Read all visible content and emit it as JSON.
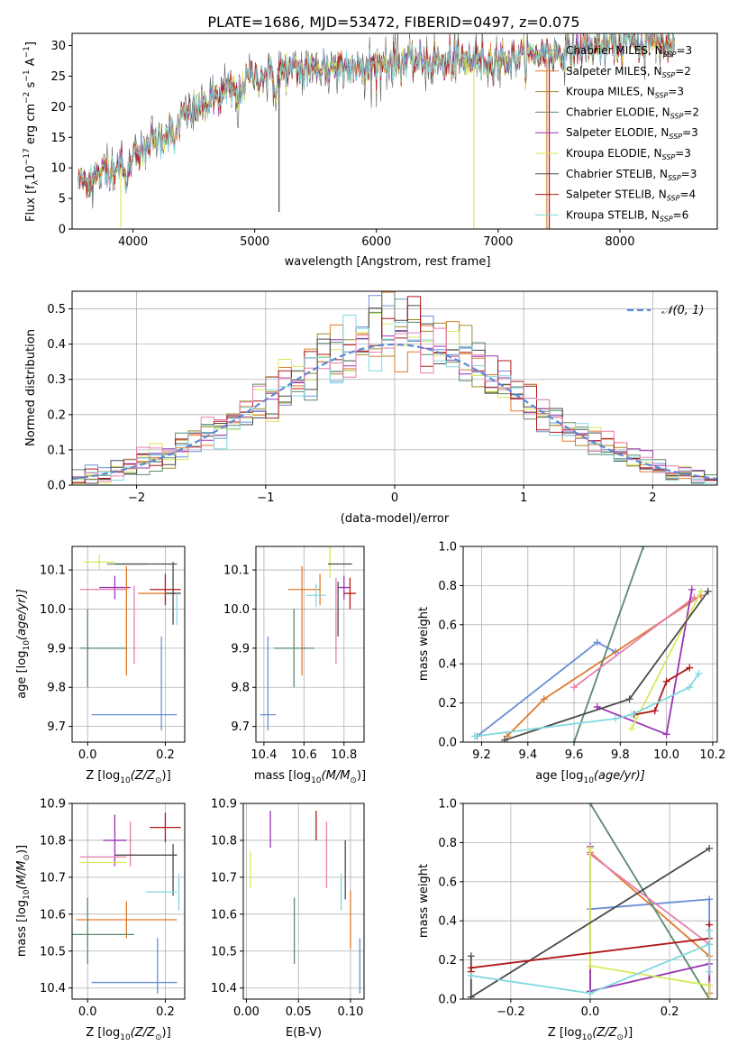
{
  "title": "PLATE=1686, MJD=53472, FIBERID=0497, z=0.075",
  "colors": {
    "Chabrier MILES": "#6a8fd6",
    "Salpeter MILES": "#e07b2e",
    "Kroupa MILES": "#a08a2a",
    "Chabrier ELODIE": "#5b8a6a",
    "Salpeter ELODIE": "#9b33b4",
    "Kroupa ELODIE": "#d8ea5a",
    "Chabrier STELIB": "#4a4a4a",
    "Salpeter STELIB": "#b01818",
    "Kroupa STELIB": "#80d8e0",
    "Pink": "#e57fae",
    "Normal": "#5b8ad8"
  },
  "chart_data": [
    {
      "type": "line",
      "name": "spectrum",
      "xlabel": "wavelength [Angstrom, rest frame]",
      "ylabel": "Flux [f",
      "ylabel_parts": [
        "Flux [f",
        "λ",
        "10",
        "−17",
        " erg cm",
        "−2",
        " s",
        "−1",
        " A",
        "−1",
        "]"
      ],
      "xlim": [
        3500,
        8800
      ],
      "ylim": [
        0,
        32
      ],
      "xticks": [
        4000,
        5000,
        6000,
        7000,
        8000
      ],
      "yticks": [
        0,
        5,
        10,
        15,
        20,
        25,
        30
      ],
      "legend": [
        {
          "name": "Chabrier MILES",
          "nssp": "3"
        },
        {
          "name": "Salpeter MILES",
          "nssp": "2"
        },
        {
          "name": "Kroupa MILES",
          "nssp": "3"
        },
        {
          "name": "Chabrier ELODIE",
          "nssp": "2"
        },
        {
          "name": "Salpeter ELODIE",
          "nssp": "3"
        },
        {
          "name": "Kroupa ELODIE",
          "nssp": "3"
        },
        {
          "name": "Chabrier STELIB",
          "nssp": "3"
        },
        {
          "name": "Salpeter STELIB",
          "nssp": "4"
        },
        {
          "name": "Kroupa STELIB",
          "nssp": "6"
        }
      ],
      "legend_position": "right",
      "nssp_label": "N",
      "nssp_sub": "SSP",
      "continuum_knots": {
        "x": [
          3550,
          3700,
          3900,
          4000,
          4300,
          4500,
          4800,
          5000,
          5300,
          5600,
          6000,
          6500,
          7000,
          7500,
          8000,
          8450
        ],
        "y": [
          8,
          8.5,
          11,
          12.5,
          16,
          19.5,
          22.5,
          25,
          26,
          26.5,
          27,
          27.5,
          27.5,
          29,
          30.5,
          30.5
        ]
      },
      "spectrum_xrange": [
        3550,
        8450
      ],
      "absorption_lines": [
        {
          "x": 3934,
          "depth": 4
        },
        {
          "x": 3969,
          "depth": 3
        },
        {
          "x": 4101,
          "depth": 2
        },
        {
          "x": 4340,
          "depth": 3
        },
        {
          "x": 4861,
          "depth": 2
        },
        {
          "x": 5175,
          "depth": 3
        },
        {
          "x": 5890,
          "depth": 2.5
        },
        {
          "x": 6563,
          "depth": 2
        }
      ],
      "spikes": [
        {
          "x": 3900,
          "series": "Kroupa ELODIE",
          "to": 0.3
        },
        {
          "x": 5200,
          "series": "Chabrier STELIB",
          "to": 2.8
        },
        {
          "x": 6800,
          "series": "Kroupa ELODIE",
          "to": 0
        },
        {
          "x": 7400,
          "series": "Salpeter MILES",
          "to": 0
        },
        {
          "x": 7420,
          "series": "Salpeter STELIB",
          "to": 0
        }
      ],
      "grid": false
    },
    {
      "type": "histogram",
      "name": "residuals",
      "xlabel": "(data-model)/error",
      "ylabel": "Normed distribution",
      "xlim": [
        -2.5,
        2.5
      ],
      "ylim": [
        0,
        0.55
      ],
      "xticks": [
        -2,
        -1,
        0,
        1,
        2
      ],
      "xtick_labels": [
        "−2",
        "−1",
        "0",
        "1",
        "2"
      ],
      "yticks": [
        0,
        0.1,
        0.2,
        0.3,
        0.4,
        0.5
      ],
      "ytick_labels": [
        "0.0",
        "0.1",
        "0.2",
        "0.3",
        "0.4",
        "0.5"
      ],
      "bin_width": 0.1,
      "normal_label": "𝒩(0, 1)",
      "grid": true,
      "legend_position": "upper right"
    },
    {
      "type": "errorbar",
      "name": "age-vs-Z",
      "xlabel": "Z [log",
      "xlabel_parts": [
        "Z [log",
        "10",
        "(Z/Z",
        "⊙",
        ")]"
      ],
      "ylabel_parts": [
        "age  [log",
        "10",
        "(age/yr)]"
      ],
      "xlim": [
        -0.04,
        0.25
      ],
      "ylim": [
        9.66,
        10.16
      ],
      "xticks": [
        0.0,
        0.2
      ],
      "xtick_labels": [
        "0.0",
        "0.2"
      ],
      "yticks": [
        9.7,
        9.8,
        9.9,
        10.0,
        10.1
      ],
      "ytick_labels": [
        "9.7",
        "9.8",
        "9.9",
        "10.0",
        "10.1"
      ],
      "points": [
        {
          "s": "Kroupa ELODIE",
          "x": 0.03,
          "xe": 0.04,
          "y": 10.12,
          "ye": 0.02
        },
        {
          "s": "Chabrier ELODIE",
          "x": 0.1,
          "xe": 0.05,
          "y": 10.115,
          "ye": 0.0
        },
        {
          "s": "Chabrier STELIB",
          "x": 0.15,
          "xe": 0.08,
          "y": 10.115,
          "ye": 0.0
        },
        {
          "s": "Salpeter ELODIE",
          "x": 0.07,
          "xe": 0.04,
          "y": 10.055,
          "ye": 0.03
        },
        {
          "s": "Pink",
          "x": 0.04,
          "xe": 0.06,
          "y": 10.05,
          "ye": 0.0
        },
        {
          "s": "Salpeter STELIB",
          "x": 0.2,
          "xe": 0.04,
          "y": 10.05,
          "ye": 0.04
        },
        {
          "s": "Salpeter MILES",
          "x": 0.18,
          "xe": 0.05,
          "y": 10.04,
          "ye": 0.0
        },
        {
          "s": "Chabrier STELIB",
          "x": 0.22,
          "xe": 0.02,
          "y": 10.04,
          "ye": 0.08
        },
        {
          "s": "Kroupa STELIB",
          "x": 0.23,
          "xe": 0.0,
          "y": 10.0,
          "ye": 0.04
        },
        {
          "s": "Salpeter MILES",
          "x": 0.1,
          "xe": 0.0,
          "y": 9.97,
          "ye": 0.14
        },
        {
          "s": "Pink",
          "x": 0.12,
          "xe": 0.0,
          "y": 9.96,
          "ye": 0.1
        },
        {
          "s": "Chabrier ELODIE",
          "x": 0.0,
          "xe": 0.0,
          "y": 9.9,
          "ye": 0.1
        },
        {
          "s": "Chabrier ELODIE",
          "x": 0.04,
          "xe": 0.06,
          "y": 9.9,
          "ye": 0.0
        },
        {
          "s": "Chabrier MILES",
          "x": 0.19,
          "xe": 0.0,
          "y": 9.81,
          "ye": 0.12
        },
        {
          "s": "Chabrier MILES",
          "x": 0.12,
          "xe": 0.11,
          "y": 9.73,
          "ye": 0.0
        }
      ]
    },
    {
      "type": "errorbar",
      "name": "age-vs-mass",
      "xlabel_parts": [
        "mass [log",
        "10",
        "(M/M",
        "⊙",
        ")]"
      ],
      "xlim": [
        10.36,
        10.9
      ],
      "ylim": [
        9.66,
        10.16
      ],
      "xticks": [
        10.4,
        10.6,
        10.8
      ],
      "xtick_labels": [
        "10.4",
        "10.6",
        "10.8"
      ],
      "yticks": [
        9.7,
        9.8,
        9.9,
        10.0,
        10.1
      ],
      "ytick_labels": [
        "9.7",
        "9.8",
        "9.9",
        "10.0",
        "10.1"
      ],
      "points": [
        {
          "s": "Kroupa ELODIE",
          "x": 10.73,
          "xe": 0.0,
          "y": 10.12,
          "ye": 0.04
        },
        {
          "s": "Chabrier STELIB",
          "x": 10.78,
          "xe": 0.06,
          "y": 10.115,
          "ye": 0.0
        },
        {
          "s": "Salpeter MILES",
          "x": 10.6,
          "xe": 0.08,
          "y": 10.05,
          "ye": 0.0
        },
        {
          "s": "Salpeter MILES",
          "x": 10.68,
          "xe": 0.0,
          "y": 10.05,
          "ye": 0.04
        },
        {
          "s": "Salpeter ELODIE",
          "x": 10.8,
          "xe": 0.03,
          "y": 10.055,
          "ye": 0.03
        },
        {
          "s": "Salpeter STELIB",
          "x": 10.83,
          "xe": 0.03,
          "y": 10.04,
          "ye": 0.04
        },
        {
          "s": "Kroupa STELIB",
          "x": 10.66,
          "xe": 0.05,
          "y": 10.035,
          "ye": 0.03
        },
        {
          "s": "Chabrier STELIB",
          "x": 10.77,
          "xe": 0.0,
          "y": 10.0,
          "ye": 0.07
        },
        {
          "s": "Pink",
          "x": 10.76,
          "xe": 0.0,
          "y": 9.97,
          "ye": 0.11
        },
        {
          "s": "Salpeter MILES",
          "x": 10.59,
          "xe": 0.0,
          "y": 9.97,
          "ye": 0.14
        },
        {
          "s": "Chabrier ELODIE",
          "x": 10.55,
          "xe": 0.0,
          "y": 9.9,
          "ye": 0.1
        },
        {
          "s": "Chabrier ELODIE",
          "x": 10.55,
          "xe": 0.1,
          "y": 9.9,
          "ye": 0.0
        },
        {
          "s": "Chabrier MILES",
          "x": 10.42,
          "xe": 0.0,
          "y": 9.81,
          "ye": 0.12
        },
        {
          "s": "Chabrier MILES",
          "x": 10.42,
          "xe": 0.04,
          "y": 9.73,
          "ye": 0.0
        }
      ]
    },
    {
      "type": "line",
      "name": "mass-weight-vs-age",
      "xlabel_parts": [
        "age  [log",
        "10",
        "(age/yr)]"
      ],
      "ylabel": "mass weight",
      "xlim": [
        9.12,
        10.22
      ],
      "ylim": [
        0,
        1.0
      ],
      "xticks": [
        9.2,
        9.4,
        9.6,
        9.8,
        10.0,
        10.2
      ],
      "xtick_labels": [
        "9.2",
        "9.4",
        "9.6",
        "9.8",
        "10.0",
        "10.2"
      ],
      "yticks": [
        0,
        0.2,
        0.4,
        0.6,
        0.8,
        1.0
      ],
      "ytick_labels": [
        "0.0",
        "0.2",
        "0.4",
        "0.6",
        "0.8",
        "1.0"
      ],
      "grid": true,
      "series": [
        {
          "s": "Chabrier MILES",
          "x": [
            9.18,
            9.7,
            9.78
          ],
          "y": [
            0.03,
            0.51,
            0.46
          ]
        },
        {
          "s": "Salpeter MILES",
          "x": [
            9.31,
            9.47,
            10.15
          ],
          "y": [
            0.03,
            0.22,
            0.75
          ]
        },
        {
          "s": "Chabrier ELODIE",
          "x": [
            9.6,
            9.9
          ],
          "y": [
            0.0,
            1.0
          ]
        },
        {
          "s": "Pink",
          "x": [
            9.6,
            10.12
          ],
          "y": [
            0.28,
            0.74
          ]
        },
        {
          "s": "Salpeter ELODIE",
          "x": [
            9.7,
            10.0,
            10.11
          ],
          "y": [
            0.18,
            0.04,
            0.78
          ]
        },
        {
          "s": "Kroupa ELODIE",
          "x": [
            9.85,
            10.15
          ],
          "y": [
            0.07,
            0.77
          ]
        },
        {
          "s": "Chabrier STELIB",
          "x": [
            9.3,
            9.84,
            10.18
          ],
          "y": [
            0.01,
            0.22,
            0.77
          ]
        },
        {
          "s": "Salpeter STELIB",
          "x": [
            9.86,
            9.95,
            10.0,
            10.1
          ],
          "y": [
            0.14,
            0.16,
            0.31,
            0.38
          ]
        },
        {
          "s": "Kroupa STELIB",
          "x": [
            9.17,
            9.78,
            9.85,
            10.1,
            10.14
          ],
          "y": [
            0.03,
            0.12,
            0.14,
            0.28,
            0.35
          ]
        }
      ]
    },
    {
      "type": "errorbar",
      "name": "mass-vs-Z",
      "xlabel_parts": [
        "Z [log",
        "10",
        "(Z/Z",
        "⊙",
        ")]"
      ],
      "ylabel_parts": [
        "mass [log",
        "10",
        "(M/M",
        "⊙",
        ")]"
      ],
      "xlim": [
        -0.04,
        0.25
      ],
      "ylim": [
        10.37,
        10.9
      ],
      "xticks": [
        0.0,
        0.2
      ],
      "xtick_labels": [
        "0.0",
        "0.2"
      ],
      "yticks": [
        10.4,
        10.5,
        10.6,
        10.7,
        10.8,
        10.9
      ],
      "ytick_labels": [
        "10.4",
        "10.5",
        "10.6",
        "10.7",
        "10.8",
        "10.9"
      ],
      "points": [
        {
          "s": "Salpeter STELIB",
          "x": 0.2,
          "xe": 0.04,
          "y": 10.835,
          "ye": 0.04
        },
        {
          "s": "Salpeter ELODIE",
          "x": 0.07,
          "xe": 0.03,
          "y": 10.8,
          "ye": 0.07
        },
        {
          "s": "Pink",
          "x": 0.11,
          "xe": 0.0,
          "y": 10.79,
          "ye": 0.06
        },
        {
          "s": "Chabrier STELIB",
          "x": 0.15,
          "xe": 0.08,
          "y": 10.76,
          "ye": 0.0
        },
        {
          "s": "Pink",
          "x": 0.04,
          "xe": 0.06,
          "y": 10.755,
          "ye": 0.0
        },
        {
          "s": "Kroupa ELODIE",
          "x": 0.04,
          "xe": 0.06,
          "y": 10.74,
          "ye": 0.0
        },
        {
          "s": "Chabrier STELIB",
          "x": 0.22,
          "xe": 0.0,
          "y": 10.72,
          "ye": 0.07
        },
        {
          "s": "Kroupa STELIB",
          "x": 0.19,
          "xe": 0.04,
          "y": 10.66,
          "ye": 0.0
        },
        {
          "s": "Kroupa STELIB",
          "x": 0.235,
          "xe": 0.0,
          "y": 10.66,
          "ye": 0.05
        },
        {
          "s": "Salpeter MILES",
          "x": 0.1,
          "xe": 0.13,
          "y": 10.585,
          "ye": 0.05
        },
        {
          "s": "Chabrier ELODIE",
          "x": 0.0,
          "xe": 0.0,
          "y": 10.555,
          "ye": 0.09
        },
        {
          "s": "Chabrier ELODIE",
          "x": 0.04,
          "xe": 0.08,
          "y": 10.545,
          "ye": 0.0
        },
        {
          "s": "Chabrier MILES",
          "x": 0.18,
          "xe": 0.0,
          "y": 10.46,
          "ye": 0.075
        },
        {
          "s": "Chabrier MILES",
          "x": 0.12,
          "xe": 0.11,
          "y": 10.415,
          "ye": 0.0
        }
      ]
    },
    {
      "type": "errorbar",
      "name": "mass-vs-EBV",
      "xlabel": "E(B-V)",
      "xlim": [
        -0.003,
        0.113
      ],
      "ylim": [
        10.37,
        10.9
      ],
      "xticks": [
        0.0,
        0.05,
        0.1
      ],
      "xtick_labels": [
        "0.00",
        "0.05",
        "0.10"
      ],
      "yticks": [
        10.4,
        10.5,
        10.6,
        10.7,
        10.8,
        10.9
      ],
      "ytick_labels": [
        "10.4",
        "10.5",
        "10.6",
        "10.7",
        "10.8",
        "10.9"
      ],
      "points": [
        {
          "s": "Kroupa ELODIE",
          "x": 0.004,
          "xe": 0.0,
          "y": 10.72,
          "ye": 0.05
        },
        {
          "s": "Salpeter ELODIE",
          "x": 0.023,
          "xe": 0.0,
          "y": 10.83,
          "ye": 0.05
        },
        {
          "s": "Chabrier ELODIE",
          "x": 0.046,
          "xe": 0.0,
          "y": 10.555,
          "ye": 0.09
        },
        {
          "s": "Salpeter STELIB",
          "x": 0.067,
          "xe": 0.0,
          "y": 10.84,
          "ye": 0.04
        },
        {
          "s": "Pink",
          "x": 0.077,
          "xe": 0.0,
          "y": 10.76,
          "ye": 0.09
        },
        {
          "s": "Kroupa STELIB",
          "x": 0.091,
          "xe": 0.0,
          "y": 10.66,
          "ye": 0.05
        },
        {
          "s": "Chabrier STELIB",
          "x": 0.095,
          "xe": 0.0,
          "y": 10.72,
          "ye": 0.08
        },
        {
          "s": "Salpeter MILES",
          "x": 0.1,
          "xe": 0.0,
          "y": 10.585,
          "ye": 0.08
        },
        {
          "s": "Chabrier MILES",
          "x": 0.109,
          "xe": 0.0,
          "y": 10.46,
          "ye": 0.075
        }
      ]
    },
    {
      "type": "line",
      "name": "mass-weight-vs-Z",
      "xlabel_parts": [
        "Z [log",
        "10",
        "(Z/Z",
        "⊙",
        ")]"
      ],
      "ylabel": "mass weight",
      "xlim": [
        -0.32,
        0.32
      ],
      "ylim": [
        0,
        1.0
      ],
      "xticks": [
        -0.2,
        0.0,
        0.2
      ],
      "xtick_labels": [
        "−0.2",
        "0.0",
        "0.2"
      ],
      "yticks": [
        0,
        0.2,
        0.4,
        0.6,
        0.8,
        1.0
      ],
      "ytick_labels": [
        "0.0",
        "0.2",
        "0.4",
        "0.6",
        "0.8",
        "1.0"
      ],
      "grid": true,
      "series": [
        {
          "s": "Chabrier MILES",
          "x": [
            0.0,
            0.3,
            0.3
          ],
          "y": [
            0.46,
            0.51,
            0.03
          ]
        },
        {
          "s": "Salpeter MILES",
          "x": [
            0.0,
            0.0,
            0.3,
            0.3
          ],
          "y": [
            0.03,
            0.75,
            0.22,
            0.03
          ]
        },
        {
          "s": "Chabrier ELODIE",
          "x": [
            0.0,
            0.3
          ],
          "y": [
            1.0,
            0.0
          ]
        },
        {
          "s": "Pink",
          "x": [
            0.0,
            0.3,
            0.3
          ],
          "y": [
            0.74,
            0.28,
            0.0
          ]
        },
        {
          "s": "Salpeter ELODIE",
          "x": [
            0.0,
            0.0,
            0.3,
            0.3
          ],
          "y": [
            0.78,
            0.04,
            0.18,
            0.0
          ]
        },
        {
          "s": "Kroupa ELODIE",
          "x": [
            0.0,
            0.0,
            0.3,
            0.3
          ],
          "y": [
            0.77,
            0.17,
            0.07,
            0.0
          ]
        },
        {
          "s": "Chabrier STELIB",
          "x": [
            -0.3,
            -0.3,
            0.3
          ],
          "y": [
            0.22,
            0.01,
            0.77
          ]
        },
        {
          "s": "Salpeter STELIB",
          "x": [
            -0.3,
            -0.3,
            0.3,
            0.3
          ],
          "y": [
            0.14,
            0.16,
            0.31,
            0.38
          ]
        },
        {
          "s": "Kroupa STELIB",
          "x": [
            -0.3,
            0.0,
            0.3,
            0.3,
            0.3
          ],
          "y": [
            0.12,
            0.03,
            0.28,
            0.35,
            0.14
          ]
        }
      ]
    }
  ]
}
